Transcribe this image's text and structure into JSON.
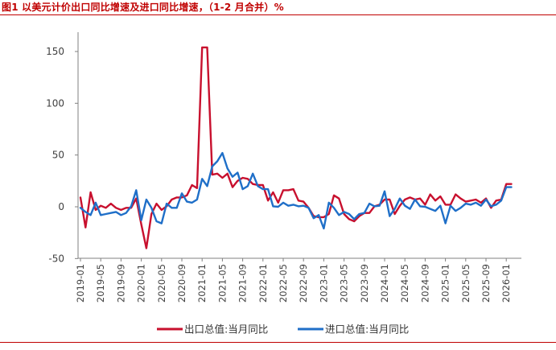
{
  "title": "图1 以美元计价出口同比增速及进口同比增速，（1-2 月合并）%",
  "chart_data": {
    "type": "line",
    "title": "",
    "xlabel": "",
    "ylabel": "",
    "ylim": [
      -50,
      160
    ],
    "yticks": [
      -50,
      0,
      50,
      100,
      150
    ],
    "xticks": [
      "2019-01",
      "2019-05",
      "2019-09",
      "2020-01",
      "2020-05",
      "2020-09",
      "2021-01",
      "2021-05",
      "2021-09",
      "2022-01",
      "2022-05",
      "2022-09",
      "2023-01",
      "2023-05",
      "2023-09",
      "2024-01",
      "2024-05",
      "2024-09",
      "2025-01",
      "2025-05",
      "2025-09",
      "2026-01"
    ],
    "legend_position": "bottom",
    "grid": false,
    "x": [
      "2019-01",
      "2019-02",
      "2019-03",
      "2019-04",
      "2019-05",
      "2019-06",
      "2019-07",
      "2019-08",
      "2019-09",
      "2019-10",
      "2019-11",
      "2019-12",
      "2020-01",
      "2020-02",
      "2020-03",
      "2020-04",
      "2020-05",
      "2020-06",
      "2020-07",
      "2020-08",
      "2020-09",
      "2020-10",
      "2020-11",
      "2020-12",
      "2021-01",
      "2021-02",
      "2021-03",
      "2021-04",
      "2021-05",
      "2021-06",
      "2021-07",
      "2021-08",
      "2021-09",
      "2021-10",
      "2021-11",
      "2021-12",
      "2022-01",
      "2022-02",
      "2022-03",
      "2022-04",
      "2022-05",
      "2022-06",
      "2022-07",
      "2022-08",
      "2022-09",
      "2022-10",
      "2022-11",
      "2022-12",
      "2023-01",
      "2023-02",
      "2023-03",
      "2023-04",
      "2023-05",
      "2023-06",
      "2023-07",
      "2023-08",
      "2023-09",
      "2023-10",
      "2023-11",
      "2023-12",
      "2024-01",
      "2024-02",
      "2024-03",
      "2024-04",
      "2024-05",
      "2024-06",
      "2024-07",
      "2024-08",
      "2024-09",
      "2024-10",
      "2024-11",
      "2024-12",
      "2025-01",
      "2025-02",
      "2025-03",
      "2025-04",
      "2025-05",
      "2025-06",
      "2025-07",
      "2025-08",
      "2025-09",
      "2025-10",
      "2025-11",
      "2025-12",
      "2026-01",
      "2026-02"
    ],
    "series": [
      {
        "name": "出口总值:当月同比",
        "color": "#c8102e",
        "values": [
          9,
          -20,
          14,
          -3,
          1,
          -1,
          3,
          -1,
          -3,
          -1,
          -1,
          8,
          -17,
          -40,
          -7,
          3,
          -3,
          0.5,
          7,
          9,
          9,
          11,
          21,
          18,
          154,
          154,
          31,
          32,
          28,
          32,
          19,
          25,
          28,
          27,
          22,
          21,
          21,
          6,
          14,
          4,
          16,
          16,
          17,
          6,
          5,
          -1,
          -9,
          -10,
          -10,
          -7,
          11,
          8,
          -7,
          -12,
          -14,
          -9,
          -6,
          -6,
          0.5,
          2,
          7,
          7,
          -7,
          1,
          7,
          9,
          7,
          8,
          2,
          12,
          6,
          10,
          2,
          2,
          12,
          8,
          5,
          6,
          7,
          4,
          8,
          -1,
          6,
          7,
          22,
          22
        ]
      },
      {
        "name": "进口总值:当月同比",
        "color": "#1f6fc8",
        "values": [
          -1,
          -5,
          -8,
          4,
          -8,
          -7,
          -6,
          -5,
          -8,
          -6,
          0.5,
          16,
          -13,
          7,
          -1,
          -14,
          -16,
          3,
          -1,
          -1,
          13,
          5,
          4,
          7,
          27,
          20,
          39,
          44,
          52,
          37,
          29,
          33,
          17,
          20,
          32,
          20,
          17,
          17,
          0.5,
          0,
          4,
          1,
          2,
          0.5,
          1,
          -1,
          -11,
          -8,
          -21,
          4,
          -1,
          -8,
          -5,
          -7,
          -12,
          -7,
          -6,
          3,
          0.5,
          1,
          15,
          -9,
          -2,
          8,
          1,
          -2,
          7,
          0.5,
          0,
          -2,
          -4,
          1,
          -16,
          1,
          -4,
          -1,
          3,
          2,
          4,
          1,
          7,
          0.5,
          2,
          6,
          19,
          19
        ]
      }
    ]
  }
}
